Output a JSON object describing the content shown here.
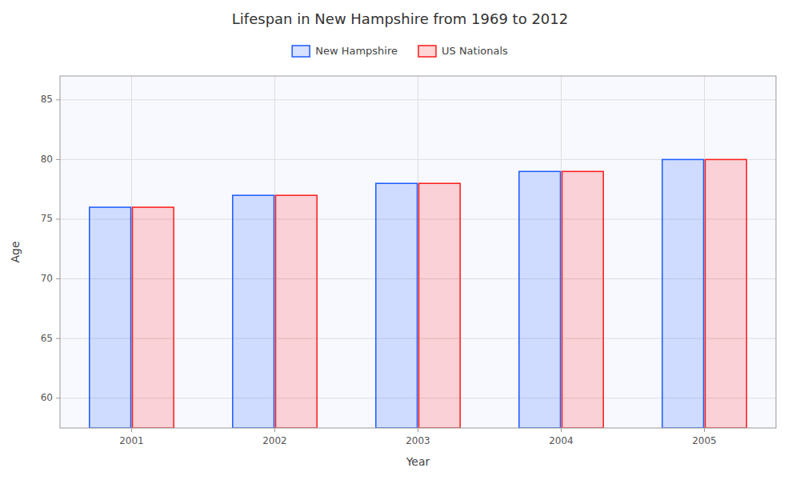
{
  "chart_data": {
    "type": "bar",
    "title": "Lifespan in New Hampshire from 1969 to 2012",
    "x_label": "Year",
    "y_label": "Age",
    "categories": [
      "2001",
      "2002",
      "2003",
      "2004",
      "2005"
    ],
    "series": [
      {
        "name": "New Hampshire",
        "color": "#1a5aff",
        "values": [
          76,
          77,
          78,
          79,
          80
        ]
      },
      {
        "name": "US Nationals",
        "color": "#ff1a1a",
        "values": [
          76,
          77,
          78,
          79,
          80
        ]
      }
    ],
    "ylim": [
      57.5,
      87
    ],
    "yticks": [
      60,
      65,
      70,
      75,
      80,
      85
    ],
    "grid": true,
    "legend": "top"
  }
}
